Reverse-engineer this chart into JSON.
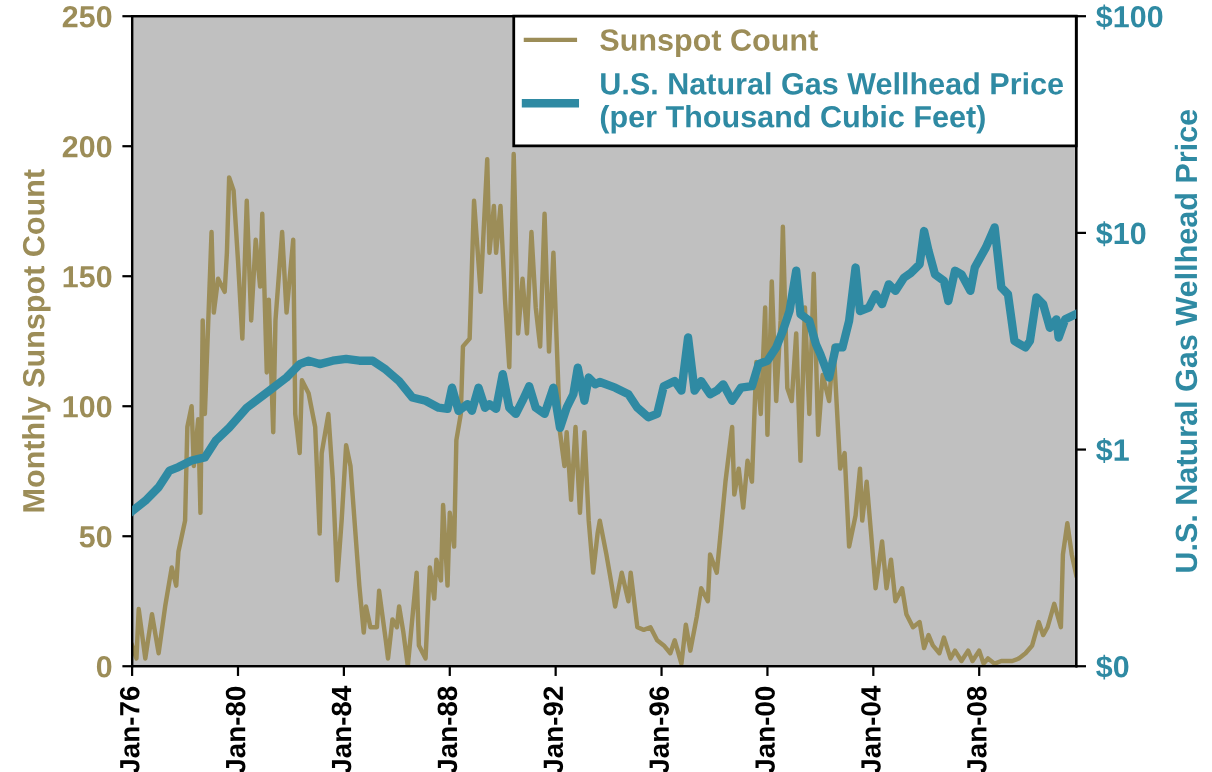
{
  "chart_data": {
    "type": "line",
    "ylabel": "Monthly Sunspot Count",
    "y2label": "U.S. Natural Gas Wellhead Price",
    "xlim": [
      "1976-01",
      "2011-09"
    ],
    "xticks": [
      {
        "value": "1976-01",
        "label": "Jan-76"
      },
      {
        "value": "1980-01",
        "label": "Jan-80"
      },
      {
        "value": "1984-01",
        "label": "Jan-84"
      },
      {
        "value": "1988-01",
        "label": "Jan-88"
      },
      {
        "value": "1992-01",
        "label": "Jan-92"
      },
      {
        "value": "1996-01",
        "label": "Jan-96"
      },
      {
        "value": "2000-01",
        "label": "Jan-00"
      },
      {
        "value": "2004-01",
        "label": "Jan-04"
      },
      {
        "value": "2008-01",
        "label": "Jan-08"
      }
    ],
    "ylim": [
      0,
      250
    ],
    "yticks": [
      0,
      50,
      100,
      150,
      200,
      250
    ],
    "y2lim": [
      0.1,
      100
    ],
    "y2ticks": [
      {
        "value": 0.1,
        "label": "$0"
      },
      {
        "value": 1,
        "label": "$1"
      },
      {
        "value": 10,
        "label": "$10"
      },
      {
        "value": 100,
        "label": "$100"
      }
    ],
    "log": "y2",
    "grid": false,
    "legend": "top right",
    "marker": "none",
    "line_style": "solid",
    "series": [
      {
        "name": "Sunspot Count",
        "color": "#9c8d58",
        "x": [
          "1976-01",
          "1976-03",
          "1976-04",
          "1976-07",
          "1976-10",
          "1977-01",
          "1977-04",
          "1977-07",
          "1977-09",
          "1977-10",
          "1978-01",
          "1978-02",
          "1978-04",
          "1978-05",
          "1978-07",
          "1978-08",
          "1978-09",
          "1978-10",
          "1979-01",
          "1979-02",
          "1979-04",
          "1979-07",
          "1979-08",
          "1979-09",
          "1979-11",
          "1980-01",
          "1980-03",
          "1980-05",
          "1980-07",
          "1980-09",
          "1980-11",
          "1980-12",
          "1981-02",
          "1981-03",
          "1981-05",
          "1981-06",
          "1981-09",
          "1981-11",
          "1982-02",
          "1982-03",
          "1982-05",
          "1982-06",
          "1982-09",
          "1982-12",
          "1983-02",
          "1983-03",
          "1983-06",
          "1983-08",
          "1983-10",
          "1983-12",
          "1984-02",
          "1984-04",
          "1984-06",
          "1984-08",
          "1984-10",
          "1984-11",
          "1985-01",
          "1985-04",
          "1985-05",
          "1985-08",
          "1985-09",
          "1985-11",
          "1986-01",
          "1986-02",
          "1986-04",
          "1986-06",
          "1986-08",
          "1986-10",
          "1986-11",
          "1987-02",
          "1987-04",
          "1987-06",
          "1987-07",
          "1987-09",
          "1987-10",
          "1987-12",
          "1988-01",
          "1988-03",
          "1988-04",
          "1988-06",
          "1988-07",
          "1988-10",
          "1988-12",
          "1989-03",
          "1989-06",
          "1989-07",
          "1989-09",
          "1989-10",
          "1989-12",
          "1990-02",
          "1990-04",
          "1990-06",
          "1990-08",
          "1990-10",
          "1990-12",
          "1991-02",
          "1991-04",
          "1991-06",
          "1991-08",
          "1991-10",
          "1991-12",
          "1992-03",
          "1992-05",
          "1992-06",
          "1992-08",
          "1992-10",
          "1992-12",
          "1993-02",
          "1993-04",
          "1993-06",
          "1993-08",
          "1993-09",
          "1993-12",
          "1994-02",
          "1994-04",
          "1994-07",
          "1994-10",
          "1994-11",
          "1995-02",
          "1995-05",
          "1995-08",
          "1995-11",
          "1996-02",
          "1996-05",
          "1996-07",
          "1996-10",
          "1996-12",
          "1997-02",
          "1997-05",
          "1997-07",
          "1997-10",
          "1997-11",
          "1998-02",
          "1998-04",
          "1998-06",
          "1998-09",
          "1998-10",
          "1998-12",
          "1999-02",
          "1999-04",
          "1999-06",
          "1999-08",
          "1999-10",
          "1999-12",
          "2000-01",
          "2000-03",
          "2000-05",
          "2000-07",
          "2000-08",
          "2000-10",
          "2000-12",
          "2001-02",
          "2001-04",
          "2001-06",
          "2001-08",
          "2001-10",
          "2001-12",
          "2002-02",
          "2002-05",
          "2002-07",
          "2002-10",
          "2002-12",
          "2003-02",
          "2003-05",
          "2003-07",
          "2003-08",
          "2003-10",
          "2003-12",
          "2004-02",
          "2004-05",
          "2004-07",
          "2004-09",
          "2004-11",
          "2005-02",
          "2005-04",
          "2005-07",
          "2005-10",
          "2005-12",
          "2006-02",
          "2006-04",
          "2006-07",
          "2006-09",
          "2006-12",
          "2007-02",
          "2007-05",
          "2007-08",
          "2007-10",
          "2008-01",
          "2008-03",
          "2008-05",
          "2008-08",
          "2008-11",
          "2009-04",
          "2009-07",
          "2009-10",
          "2010-01",
          "2010-04",
          "2010-06",
          "2010-08",
          "2010-11",
          "2011-02",
          "2011-03",
          "2011-05",
          "2011-07",
          "2011-09"
        ],
        "values": [
          8,
          3,
          22,
          3,
          20,
          5,
          23,
          38,
          31,
          44,
          56,
          92,
          100,
          77,
          95,
          59,
          133,
          97,
          167,
          136,
          149,
          144,
          159,
          188,
          183,
          156,
          126,
          179,
          133,
          164,
          146,
          174,
          113,
          141,
          90,
          133,
          167,
          136,
          164,
          97,
          82,
          110,
          105,
          92,
          51,
          82,
          97,
          72,
          33,
          56,
          85,
          77,
          54,
          31,
          13,
          23,
          15,
          15,
          29,
          10,
          3,
          18,
          15,
          23,
          13,
          0,
          18,
          36,
          8,
          3,
          38,
          26,
          41,
          33,
          62,
          31,
          59,
          46,
          87,
          97,
          123,
          126,
          179,
          144,
          195,
          159,
          177,
          159,
          177,
          141,
          115,
          197,
          128,
          149,
          128,
          167,
          138,
          123,
          174,
          121,
          159,
          90,
          77,
          90,
          64,
          92,
          59,
          90,
          56,
          36,
          51,
          56,
          43,
          33,
          23,
          36,
          25,
          36,
          15,
          14,
          15,
          10,
          8,
          5,
          10,
          1,
          16,
          6,
          19,
          30,
          25,
          43,
          36,
          53,
          71,
          92,
          66,
          76,
          61,
          79,
          71,
          117,
          97,
          138,
          89,
          148,
          102,
          133,
          169,
          107,
          102,
          128,
          79,
          138,
          97,
          151,
          89,
          112,
          102,
          123,
          76,
          82,
          46,
          58,
          76,
          56,
          71,
          51,
          30,
          48,
          30,
          41,
          25,
          30,
          20,
          15,
          17,
          7,
          12,
          8,
          5,
          11,
          3,
          6,
          2,
          6,
          2,
          6,
          1,
          3,
          1,
          2,
          2,
          3,
          5,
          8,
          17,
          12,
          15,
          24,
          15,
          43,
          55,
          43,
          35
        ]
      },
      {
        "name": "U.S. Natural Gas Wellhead Price\n(per Thousand Cubic Feet)",
        "color": "#2f8aa3",
        "axis": "y2",
        "x": [
          "1976-01",
          "1976-07",
          "1977-01",
          "1977-06",
          "1977-10",
          "1978-04",
          "1978-10",
          "1979-03",
          "1979-09",
          "1980-05",
          "1981-02",
          "1981-11",
          "1982-05",
          "1982-09",
          "1983-02",
          "1983-08",
          "1984-02",
          "1984-08",
          "1985-02",
          "1985-08",
          "1986-02",
          "1986-08",
          "1987-02",
          "1987-08",
          "1987-12",
          "1988-02",
          "1988-05",
          "1988-09",
          "1988-11",
          "1989-02",
          "1989-05",
          "1989-07",
          "1989-10",
          "1990-01",
          "1990-04",
          "1990-07",
          "1990-10",
          "1991-01",
          "1991-04",
          "1991-08",
          "1991-12",
          "1992-03",
          "1992-06",
          "1992-09",
          "1992-11",
          "1993-02",
          "1993-04",
          "1993-07",
          "1993-09",
          "1994-04",
          "1994-10",
          "1995-02",
          "1995-07",
          "1995-11",
          "1996-02",
          "1996-07",
          "1996-10",
          "1997-01",
          "1997-04",
          "1997-07",
          "1997-11",
          "1998-02",
          "1998-05",
          "1998-09",
          "1999-01",
          "1999-06",
          "1999-09",
          "2000-01",
          "2000-05",
          "2000-08",
          "2000-11",
          "2001-02",
          "2001-04",
          "2001-08",
          "2001-11",
          "2002-01",
          "2002-05",
          "2002-08",
          "2002-11",
          "2003-02",
          "2003-05",
          "2003-07",
          "2003-11",
          "2004-02",
          "2004-05",
          "2004-08",
          "2004-11",
          "2005-03",
          "2005-06",
          "2005-10",
          "2005-12",
          "2006-02",
          "2006-05",
          "2006-09",
          "2006-11",
          "2007-02",
          "2007-05",
          "2007-09",
          "2007-11",
          "2008-04",
          "2008-08",
          "2008-11",
          "2009-02",
          "2009-05",
          "2009-10",
          "2009-12",
          "2010-03",
          "2010-06",
          "2010-09",
          "2010-12",
          "2011-01",
          "2011-04",
          "2011-09"
        ],
        "values": [
          0.52,
          0.58,
          0.67,
          0.8,
          0.83,
          0.89,
          0.92,
          1.1,
          1.26,
          1.56,
          1.83,
          2.15,
          2.48,
          2.57,
          2.48,
          2.57,
          2.62,
          2.57,
          2.57,
          2.34,
          2.07,
          1.74,
          1.68,
          1.56,
          1.54,
          1.93,
          1.51,
          1.62,
          1.51,
          1.93,
          1.56,
          1.62,
          1.54,
          2.23,
          1.56,
          1.46,
          1.68,
          1.96,
          1.56,
          1.46,
          1.93,
          1.26,
          1.56,
          1.8,
          2.39,
          1.68,
          2.15,
          2.0,
          2.05,
          1.93,
          1.8,
          1.56,
          1.41,
          1.46,
          1.96,
          2.07,
          1.87,
          3.29,
          1.87,
          2.07,
          1.8,
          1.87,
          2.0,
          1.68,
          1.93,
          1.96,
          2.48,
          2.57,
          2.96,
          3.53,
          4.36,
          6.69,
          4.22,
          3.93,
          3.06,
          2.75,
          2.15,
          2.96,
          2.96,
          3.93,
          6.92,
          4.36,
          4.52,
          5.21,
          4.69,
          5.79,
          5.4,
          6.22,
          6.53,
          7.16,
          10.2,
          8.26,
          6.44,
          6.0,
          4.85,
          6.69,
          6.44,
          5.4,
          6.92,
          8.55,
          10.6,
          5.6,
          5.21,
          3.17,
          2.96,
          3.17,
          5.04,
          4.69,
          3.65,
          3.99,
          3.29,
          3.99,
          4.22
        ]
      }
    ]
  }
}
